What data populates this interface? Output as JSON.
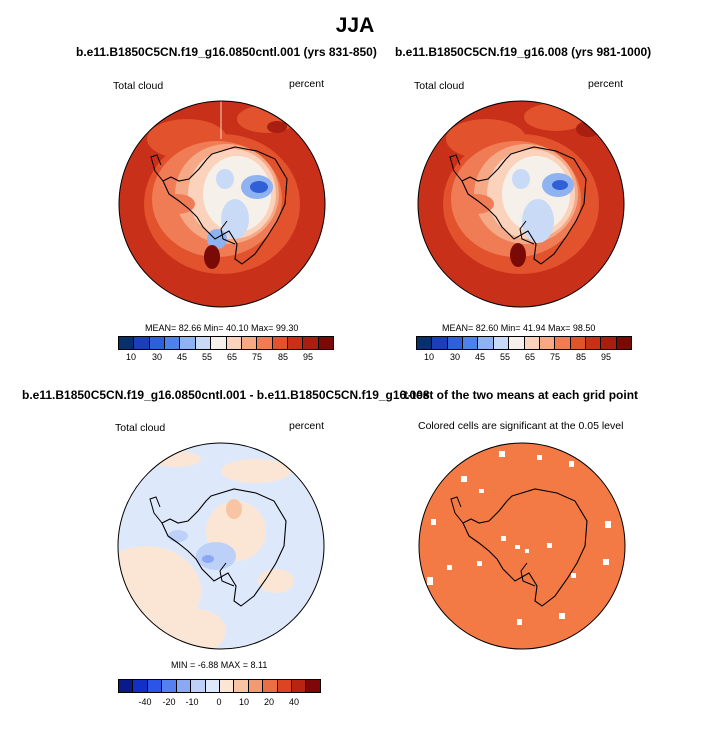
{
  "title": "JJA",
  "panels": [
    {
      "title": "b.e11.B1850C5CN.f19_g16.0850cntl.001 (yrs 831-850)",
      "left_label": "Total cloud",
      "right_label": "percent",
      "stats": "MEAN=  82.66  Min=  40.10  Max=  99.30",
      "colorbar_ticks": [
        "10",
        "30",
        "45",
        "55",
        "65",
        "75",
        "85",
        "95"
      ]
    },
    {
      "title": "b.e11.B1850C5CN.f19_g16.008 (yrs 981-1000)",
      "left_label": "Total cloud",
      "right_label": "percent",
      "stats": "MEAN=  82.60  Min=  41.94  Max=  98.50",
      "colorbar_ticks": [
        "10",
        "30",
        "45",
        "55",
        "65",
        "75",
        "85",
        "95"
      ]
    },
    {
      "title": "b.e11.B1850C5CN.f19_g16.0850cntl.001 - b.e11.B1850C5CN.f19_g16.008",
      "left_label": "Total cloud",
      "right_label": "percent",
      "stats": "MIN =  -6.88  MAX =   8.11",
      "colorbar_ticks": [
        "-40",
        "-20",
        "-10",
        "0",
        "10",
        "20",
        "40"
      ]
    },
    {
      "title": "t-test of the two means at each grid point",
      "subtitle": "Colored cells are significant at the 0.05 level"
    }
  ],
  "colors": {
    "abs_scale": [
      "#08306b",
      "#1c3fb8",
      "#3060d8",
      "#4f82e8",
      "#8fb2f0",
      "#c9daf6",
      "#f6f0ea",
      "#fbd3bd",
      "#f6a986",
      "#ef7c55",
      "#e2522c",
      "#c9301a",
      "#a81e10",
      "#7a0a06"
    ],
    "diff_scale": [
      "#0a1a8a",
      "#1230c8",
      "#2a55e8",
      "#5680f0",
      "#8aa8f4",
      "#bcd0f8",
      "#dde8fb",
      "#fbe6d6",
      "#f9c4a4",
      "#f49a72",
      "#ec6e44",
      "#dc4422",
      "#b82410",
      "#7e0808"
    ],
    "ttest_fill": "#f47a45",
    "land_diff": "#e4eaf5"
  }
}
